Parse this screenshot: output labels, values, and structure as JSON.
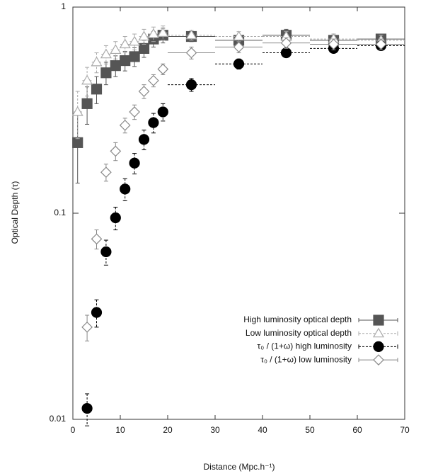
{
  "chart_data": {
    "type": "scatter",
    "x_label": "Distance (Mpc.h⁻¹)",
    "y_label": "Optical Depth (τ)",
    "xlim": [
      0,
      70
    ],
    "xticks": [
      0,
      10,
      20,
      30,
      40,
      50,
      60,
      70
    ],
    "ylim": [
      0.01,
      1
    ],
    "yticks": [
      0.01,
      0.1,
      1
    ],
    "log_y": true,
    "legend": "lower right",
    "series": [
      {
        "name": "High luminosity optical depth",
        "color": "#555555",
        "marker": "square",
        "dashed": false,
        "x": [
          1,
          3,
          5,
          7,
          9,
          11,
          13,
          15,
          17,
          19,
          25,
          35,
          45,
          55,
          65
        ],
        "values": [
          0.22,
          0.34,
          0.4,
          0.48,
          0.52,
          0.55,
          0.575,
          0.63,
          0.7,
          0.73,
          0.72,
          0.69,
          0.73,
          0.69,
          0.7
        ],
        "errors": [
          0.08,
          0.07,
          0.06,
          0.06,
          0.06,
          0.06,
          0.06,
          0.06,
          0.06,
          0.06,
          0.04,
          0.04,
          0.05,
          0.05,
          0.04
        ],
        "x_errors": [
          1,
          1,
          1,
          1,
          1,
          1,
          1,
          1,
          1,
          1,
          5,
          5,
          5,
          5,
          5
        ]
      },
      {
        "name": "Low luminosity optical depth",
        "color": "#aaaaaa",
        "marker": "triangle",
        "dashed": true,
        "x": [
          1,
          3,
          5,
          7,
          9,
          11,
          13,
          15,
          17,
          19,
          25,
          35,
          45,
          55,
          65
        ],
        "values": [
          0.31,
          0.44,
          0.54,
          0.59,
          0.62,
          0.66,
          0.68,
          0.72,
          0.74,
          0.75,
          0.73,
          0.72,
          0.72,
          0.7,
          0.69
        ],
        "errors": [
          0.08,
          0.07,
          0.06,
          0.06,
          0.06,
          0.06,
          0.06,
          0.06,
          0.06,
          0.06,
          0.04,
          0.04,
          0.04,
          0.04,
          0.04
        ],
        "x_errors": [
          1,
          1,
          1,
          1,
          1,
          1,
          1,
          1,
          1,
          1,
          5,
          5,
          5,
          5,
          5
        ]
      },
      {
        "name": "τ₀ / (1+ω) high luminosity",
        "color": "#000000",
        "marker": "circle",
        "dashed": true,
        "x": [
          3,
          5,
          7,
          9,
          11,
          13,
          15,
          17,
          19,
          25,
          35,
          45,
          55,
          65
        ],
        "values": [
          0.0113,
          0.033,
          0.065,
          0.095,
          0.131,
          0.175,
          0.228,
          0.275,
          0.31,
          0.42,
          0.53,
          0.6,
          0.63,
          0.65
        ],
        "errors": [
          0.002,
          0.005,
          0.009,
          0.012,
          0.016,
          0.02,
          0.025,
          0.03,
          0.03,
          0.03,
          0.03,
          0.03,
          0.03,
          0.03
        ],
        "x_errors": [
          1,
          1,
          1,
          1,
          1,
          1,
          1,
          1,
          1,
          5,
          5,
          5,
          5,
          5
        ]
      },
      {
        "name": "τ₀ / (1+ω) low luminosity",
        "color": "#888888",
        "marker": "diamond",
        "dashed": false,
        "x": [
          3,
          5,
          7,
          9,
          11,
          13,
          15,
          17,
          19,
          25,
          35,
          45,
          55,
          65
        ],
        "values": [
          0.028,
          0.075,
          0.158,
          0.2,
          0.267,
          0.31,
          0.39,
          0.44,
          0.5,
          0.6,
          0.64,
          0.67,
          0.66,
          0.66
        ],
        "errors": [
          0.004,
          0.008,
          0.015,
          0.02,
          0.022,
          0.025,
          0.03,
          0.03,
          0.03,
          0.04,
          0.04,
          0.04,
          0.04,
          0.04
        ],
        "x_errors": [
          1,
          1,
          1,
          1,
          1,
          1,
          1,
          1,
          1,
          5,
          5,
          5,
          5,
          5
        ]
      }
    ]
  }
}
